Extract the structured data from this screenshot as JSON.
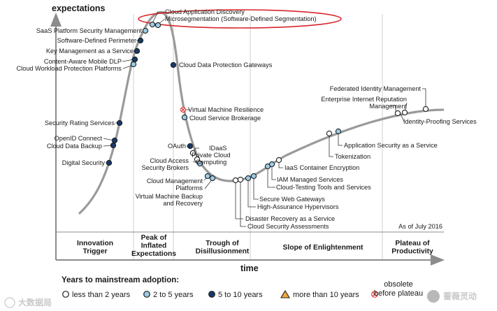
{
  "chart_data": {
    "type": "line",
    "y_axis_label": "expectations",
    "x_axis_label": "time",
    "note": "As of July 2016",
    "phases": [
      {
        "name": "Innovation\nTrigger"
      },
      {
        "name": "Peak of\nInflated\nExpectations"
      },
      {
        "name": "Trough of\nDisillusionment"
      },
      {
        "name": "Slope of Enlightenment"
      },
      {
        "name": "Plateau of\nProductivity"
      }
    ],
    "legend_title": "Years to mainstream adoption:",
    "legend": [
      {
        "key": "lt2",
        "label": "less than 2 years",
        "marker": "circle",
        "color": "#ffffff"
      },
      {
        "key": "2to5",
        "label": "2 to 5 years",
        "marker": "circle",
        "color": "#9ccbe6"
      },
      {
        "key": "5to10",
        "label": "5 to 10 years",
        "marker": "circle",
        "color": "#163a6b"
      },
      {
        "key": "gt10",
        "label": "more than 10 years",
        "marker": "triangle",
        "color": "#f3a93b"
      },
      {
        "key": "obs",
        "label": "obsolete\nbefore plateau",
        "marker": "cross",
        "color": "#e23a3a"
      }
    ],
    "highlight": "Microsegmentation (Software-Defined Segmentation)",
    "technologies": [
      {
        "name": "Cloud Application Discovery",
        "category": "2to5"
      },
      {
        "name": "Microsegmentation (Software-Defined Segmentation)",
        "category": "2to5"
      },
      {
        "name": "SaaS Platform Security Management",
        "category": "2to5"
      },
      {
        "name": "Software-Defined Perimeter",
        "category": "5to10"
      },
      {
        "name": "Key Management as a Service",
        "category": "5to10"
      },
      {
        "name": "Content-Aware Mobile DLP",
        "category": "5to10"
      },
      {
        "name": "Cloud Workload Protection Platforms",
        "category": "2to5"
      },
      {
        "name": "Security Rating Services",
        "category": "5to10"
      },
      {
        "name": "OpenID Connect",
        "category": "5to10"
      },
      {
        "name": "Cloud Data Backup",
        "category": "5to10"
      },
      {
        "name": "Digital Security",
        "category": "5to10"
      },
      {
        "name": "Cloud Data Protection Gateways",
        "category": "5to10"
      },
      {
        "name": "Virtual Machine Resilience",
        "category": "obs"
      },
      {
        "name": "Cloud Service Brokerage",
        "category": "2to5"
      },
      {
        "name": "OAuth",
        "category": "5to10"
      },
      {
        "name": "IDaaS",
        "category": "lt2"
      },
      {
        "name": "Private Cloud\nComputing",
        "category": "lt2"
      },
      {
        "name": "Cloud Access\nSecurity Brokers",
        "category": "2to5"
      },
      {
        "name": "Cloud Management\nPlatforms",
        "category": "2to5"
      },
      {
        "name": "Virtual Machine Backup\nand Recovery",
        "category": "2to5"
      },
      {
        "name": "Disaster Recovery as a Service",
        "category": "lt2"
      },
      {
        "name": "Cloud Security Assessments",
        "category": "lt2"
      },
      {
        "name": "High-Assurance Hypervisors",
        "category": "2to5"
      },
      {
        "name": "Secure Web Gateways",
        "category": "2to5"
      },
      {
        "name": "Cloud-Testing Tools and Services",
        "category": "2to5"
      },
      {
        "name": "IAM Managed Services",
        "category": "2to5"
      },
      {
        "name": "IaaS Container Encryption",
        "category": "lt2"
      },
      {
        "name": "Tokenization",
        "category": "lt2"
      },
      {
        "name": "Application Security as a Service",
        "category": "2to5"
      },
      {
        "name": "Federated Identity Management",
        "category": "lt2"
      },
      {
        "name": "Enterprise Internet Reputation\nManagement",
        "category": "lt2"
      },
      {
        "name": "Identity-Proofing Services",
        "category": "lt2"
      }
    ]
  },
  "watermark_left": "大数据局",
  "watermark_right": "蔷薇灵动"
}
